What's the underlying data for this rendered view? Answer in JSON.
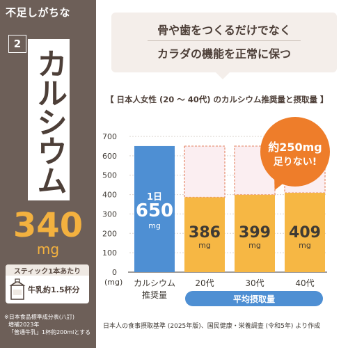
{
  "left": {
    "lack": "不足しがちな",
    "number": "2",
    "title": "カルシウム",
    "amount_value": "340",
    "amount_unit": "mg",
    "stick_header": "スティック1本あたり",
    "stick_text": "牛乳約1.5杯分",
    "sources": [
      "※日本食品標準成分表(八訂)",
      "増補2023年",
      "「普通牛乳」1杯約200mlとする"
    ]
  },
  "headline": {
    "line1": "骨や歯をつくるだけでなく",
    "line2": "カラダの機能を正常に保つ"
  },
  "chart_title": "【 日本人女性 (20 〜 40代) のカルシウム推奨量と摂取量 】",
  "bubble": {
    "line1": "約250mg",
    "line2": "足りない!"
  },
  "chart_data": {
    "type": "bar",
    "title": "【 日本人女性 (20 〜 40代) のカルシウム推奨量と摂取量 】",
    "ylabel": "(mg)",
    "ylim": [
      0,
      700
    ],
    "yticks": [
      "700",
      "600",
      "500",
      "400",
      "300",
      "200",
      "100",
      "0"
    ],
    "categories": [
      "カルシウム推奨量",
      "20代",
      "30代",
      "40代"
    ],
    "recommended": 650,
    "intake": [
      386,
      399,
      409
    ],
    "recommended_label_top": "1日",
    "recommended_label_value": "650",
    "unit": "mg",
    "intake_labels": [
      "386",
      "399",
      "409"
    ],
    "x_labels": [
      "カルシウム",
      "推奨量",
      "20代",
      "30代",
      "40代"
    ],
    "group_label": "平均摂取量",
    "colors": {
      "recommended": "#4e8fd3",
      "intake": "#f6b744",
      "shortfall": "#fbeef1",
      "shortfall_border": "#e58a6a"
    }
  },
  "reference": "日本人の食事摂取基準 (2025年版)、国民健康・栄養調査 (令和5年) より作成"
}
